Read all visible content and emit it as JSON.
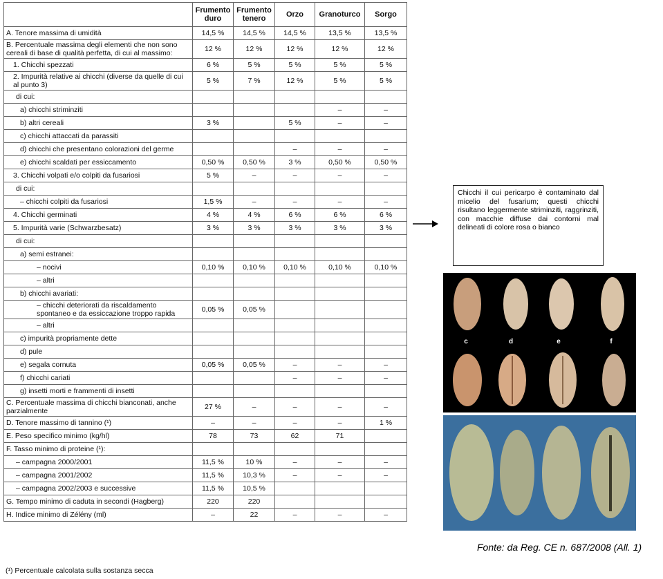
{
  "table": {
    "columns": [
      "Frumento duro",
      "Frumento tenero",
      "Orzo",
      "Granoturco",
      "Sorgo"
    ],
    "rows": [
      {
        "label": "A. Tenore massima di umidità",
        "values": [
          "14,5 %",
          "14,5 %",
          "14,5 %",
          "13,5 %",
          "13,5 %"
        ]
      },
      {
        "label": "B. Percentuale massima degli elementi che non sono cereali di base di qualità perfetta, di cui al massimo:",
        "values": [
          "12 %",
          "12 %",
          "12 %",
          "12 %",
          "12 %"
        ]
      },
      {
        "label": "1. Chicchi spezzati",
        "values": [
          "6 %",
          "5 %",
          "5 %",
          "5 %",
          "5 %"
        ]
      },
      {
        "label": "2. Impurità relative ai chicchi (diverse da quelle di cui al punto 3)",
        "values": [
          "5 %",
          "7 %",
          "12 %",
          "5 %",
          "5 %"
        ]
      },
      {
        "label": "di cui:",
        "values": [
          null,
          null,
          null,
          null,
          null
        ]
      },
      {
        "label": "a) chicchi striminziti",
        "values": [
          null,
          null,
          null,
          "–",
          "–"
        ]
      },
      {
        "label": "b) altri cereali",
        "values": [
          "3 %",
          null,
          "5 %",
          "–",
          "–"
        ]
      },
      {
        "label": "c) chicchi attaccati da parassiti",
        "values": [
          null,
          null,
          null,
          null,
          null
        ]
      },
      {
        "label": "d) chicchi che presentano colorazioni del germe",
        "values": [
          null,
          null,
          "–",
          "–",
          "–"
        ]
      },
      {
        "label": "e) chicchi scaldati per essiccamento",
        "values": [
          "0,50 %",
          "0,50 %",
          "3 %",
          "0,50 %",
          "0,50 %"
        ]
      },
      {
        "label": "3. Chicchi volpati e/o colpiti da fusariosi",
        "values": [
          "5 %",
          "–",
          "–",
          "–",
          "–"
        ]
      },
      {
        "label": "di cui:",
        "values": [
          null,
          null,
          null,
          null,
          null
        ]
      },
      {
        "label": "– chicchi colpiti da fusariosi",
        "values": [
          "1,5 %",
          "–",
          "–",
          "–",
          "–"
        ]
      },
      {
        "label": "4. Chicchi germinati",
        "values": [
          "4 %",
          "4 %",
          "6 %",
          "6 %",
          "6 %"
        ]
      },
      {
        "label": "5. Impurità varie (Schwarzbesatz)",
        "values": [
          "3 %",
          "3 %",
          "3 %",
          "3 %",
          "3 %"
        ]
      },
      {
        "label": "di cui:",
        "values": [
          null,
          null,
          null,
          null,
          null
        ]
      },
      {
        "label": "a) semi estranei:",
        "values": [
          null,
          null,
          null,
          null,
          null
        ]
      },
      {
        "label": "– nocivi",
        "values": [
          "0,10 %",
          "0,10 %",
          "0,10 %",
          "0,10 %",
          "0,10 %"
        ]
      },
      {
        "label": "– altri",
        "values": [
          null,
          null,
          null,
          null,
          null
        ]
      },
      {
        "label": "b) chicchi avariati:",
        "values": [
          null,
          null,
          null,
          null,
          null
        ]
      },
      {
        "label": "– chicchi deteriorati da riscaldamento spontaneo e da essiccazione troppo rapida",
        "values": [
          "0,05 %",
          "0,05 %",
          null,
          null,
          null
        ]
      },
      {
        "label": "– altri",
        "values": [
          null,
          null,
          null,
          null,
          null
        ]
      },
      {
        "label": "c) impurità propriamente dette",
        "values": [
          null,
          null,
          null,
          null,
          null
        ]
      },
      {
        "label": "d) pule",
        "values": [
          null,
          null,
          null,
          null,
          null
        ]
      },
      {
        "label": "e) segala cornuta",
        "values": [
          "0,05 %",
          "0,05 %",
          "–",
          "–",
          "–"
        ]
      },
      {
        "label": "f) chicchi cariati",
        "values": [
          null,
          null,
          "–",
          "–",
          "–"
        ]
      },
      {
        "label": "g) insetti morti e frammenti di insetti",
        "values": [
          null,
          null,
          null,
          null,
          null
        ]
      },
      {
        "label": "C. Percentuale massima di chicchi bianconati, anche parzialmente",
        "values": [
          "27 %",
          "–",
          "–",
          "–",
          "–"
        ]
      },
      {
        "label": "D. Tenore massimo di tannino (¹)",
        "values": [
          "–",
          "–",
          "–",
          "–",
          "1 %"
        ]
      },
      {
        "label": "E. Peso specifico minimo (kg/hl)",
        "values": [
          "78",
          "73",
          "62",
          "71",
          null
        ]
      },
      {
        "label": "F. Tasso minimo di proteine (¹):",
        "values": [
          null,
          null,
          null,
          null,
          null
        ]
      },
      {
        "label": "– campagna 2000/2001",
        "values": [
          "11,5 %",
          "10 %",
          "–",
          "–",
          "–"
        ]
      },
      {
        "label": "– campagna 2001/2002",
        "values": [
          "11,5 %",
          "10,3 %",
          "–",
          "–",
          "–"
        ]
      },
      {
        "label": "– campagna 2002/2003 e successive",
        "values": [
          "11,5 %",
          "10,5 %",
          null,
          null,
          null
        ]
      },
      {
        "label": "G. Tempo minimo di caduta in secondi (Hagberg)",
        "values": [
          "220",
          "220",
          null,
          null,
          null
        ]
      },
      {
        "label": "H. Indice minimo di Zélény (ml)",
        "values": [
          "–",
          "22",
          "–",
          "–",
          "–"
        ]
      }
    ],
    "footnote": "(¹) Percentuale calcolata sulla sostanza secca"
  },
  "note": "Chicchi il cui pericarpo è contaminato dal micelio del fusarium; questi chicchi risultano leggermente striminziti, raggrinziti, con macchie diffuse dai contorni mal delineati di colore rosa o bianco",
  "image_labels": [
    "c",
    "d",
    "e",
    "f"
  ],
  "source": "Fonte: da Reg. CE n. 687/2008 (All. 1)"
}
